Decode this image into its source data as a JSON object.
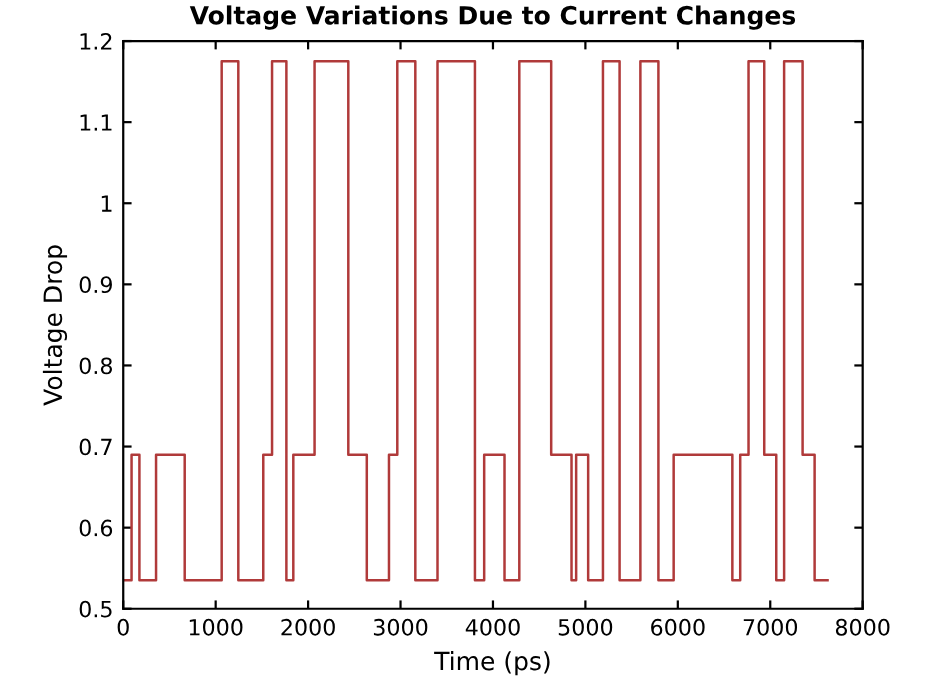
{
  "chart_data": {
    "type": "step",
    "title": "Voltage Variations Due to Current Changes",
    "xlabel": "Time (ps)",
    "ylabel": "Voltage Drop",
    "series": [
      {
        "color": "#b03a3a",
        "x": [
          0,
          90,
          175,
          355,
          665,
          1065,
          1245,
          1515,
          1610,
          1765,
          1840,
          2070,
          2435,
          2635,
          2875,
          2965,
          3160,
          3400,
          3805,
          3905,
          4125,
          4285,
          4630,
          4850,
          4900,
          5030,
          5190,
          5370,
          5595,
          5790,
          5955,
          6590,
          6675,
          6765,
          6935,
          7065,
          7150,
          7350,
          7480,
          7620
        ],
        "values": [
          0.535,
          0.69,
          0.535,
          0.69,
          0.535,
          1.175,
          0.535,
          0.69,
          1.175,
          0.535,
          0.69,
          1.175,
          0.69,
          0.535,
          0.69,
          1.175,
          0.535,
          1.175,
          0.535,
          0.69,
          0.535,
          1.175,
          0.69,
          0.535,
          0.69,
          0.535,
          1.175,
          0.535,
          1.175,
          0.535,
          0.69,
          0.535,
          0.69,
          1.175,
          0.69,
          0.535,
          1.175,
          0.69,
          0.535,
          0.535
        ]
      }
    ],
    "xlim": [
      0,
      8000
    ],
    "xticks": [
      0,
      1000,
      2000,
      3000,
      4000,
      5000,
      6000,
      7000,
      8000
    ],
    "ylim": [
      0.5,
      1.2
    ],
    "yticks": [
      0.5,
      0.6,
      0.7,
      0.8,
      0.9,
      1,
      1.1,
      1.2
    ],
    "grid": false,
    "legend": false
  }
}
